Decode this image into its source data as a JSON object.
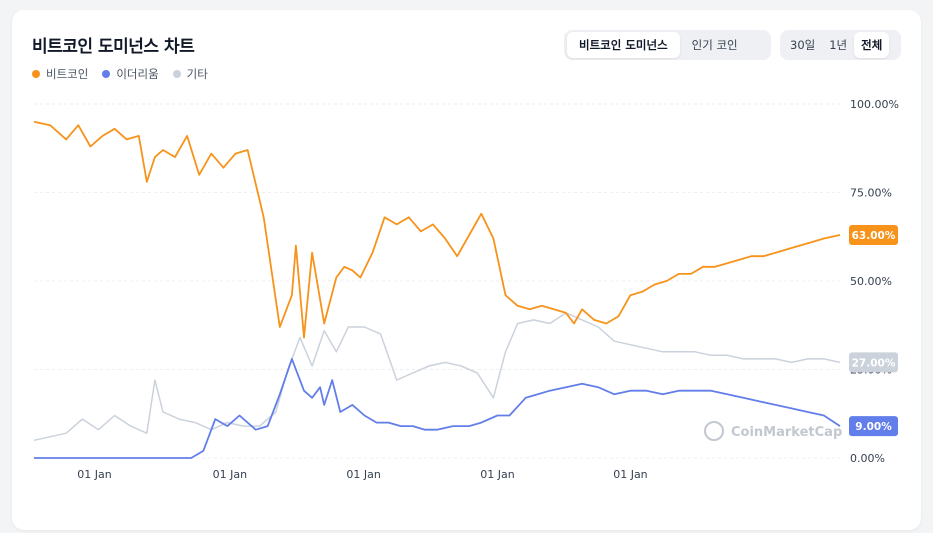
{
  "header": {
    "title": "비트코인 도미넌스 차트",
    "type_tabs": [
      "비트코인 도미넌스",
      "인기 코인"
    ],
    "range_tabs": [
      "30일",
      "1년",
      "전체"
    ]
  },
  "chart_data": {
    "type": "line",
    "legend": [
      "비트코인",
      "이더리움",
      "기타"
    ],
    "colors": {
      "btc": "#f7931a",
      "eth": "#627eea",
      "other": "#cbd2dc"
    },
    "y_ticks": [
      "100.00%",
      "75.00%",
      "50.00%",
      "25.00%",
      "0.00%"
    ],
    "x_tick_labels": [
      "01 Jan",
      "01 Jan",
      "01 Jan",
      "01 Jan",
      "01 Jan"
    ],
    "ylim": [
      0,
      100
    ],
    "last_values": {
      "btc": "63.00%",
      "eth": "9.00%",
      "other": "27.00%"
    },
    "watermark": "CoinMarketCap",
    "series": [
      {
        "name": "비트코인",
        "key": "btc",
        "x": [
          0,
          0.02,
          0.04,
          0.055,
          0.07,
          0.085,
          0.1,
          0.115,
          0.13,
          0.14,
          0.15,
          0.16,
          0.175,
          0.19,
          0.205,
          0.22,
          0.235,
          0.25,
          0.265,
          0.285,
          0.305,
          0.32,
          0.325,
          0.335,
          0.345,
          0.36,
          0.375,
          0.385,
          0.395,
          0.405,
          0.42,
          0.435,
          0.45,
          0.465,
          0.48,
          0.495,
          0.51,
          0.525,
          0.54,
          0.555,
          0.57,
          0.585,
          0.6,
          0.615,
          0.63,
          0.645,
          0.66,
          0.67,
          0.68,
          0.695,
          0.71,
          0.725,
          0.74,
          0.755,
          0.77,
          0.785,
          0.8,
          0.815,
          0.83,
          0.845,
          0.86,
          0.875,
          0.89,
          0.905,
          0.92,
          0.935,
          0.95,
          0.965,
          0.98,
          1.0
        ],
        "y": [
          95,
          94,
          90,
          94,
          88,
          91,
          93,
          90,
          91,
          78,
          85,
          87,
          85,
          91,
          80,
          86,
          82,
          86,
          87,
          68,
          37,
          46,
          60,
          34,
          58,
          38,
          51,
          54,
          53,
          51,
          58,
          68,
          66,
          68,
          64,
          66,
          62,
          57,
          63,
          69,
          62,
          46,
          43,
          42,
          43,
          42,
          41,
          38,
          42,
          39,
          38,
          40,
          46,
          47,
          49,
          50,
          52,
          52,
          54,
          54,
          55,
          56,
          57,
          57,
          58,
          59,
          60,
          61,
          62,
          63
        ]
      },
      {
        "name": "이더리움",
        "key": "eth",
        "x": [
          0,
          0.05,
          0.1,
          0.15,
          0.195,
          0.21,
          0.225,
          0.24,
          0.255,
          0.275,
          0.29,
          0.305,
          0.32,
          0.335,
          0.345,
          0.355,
          0.36,
          0.37,
          0.38,
          0.395,
          0.41,
          0.425,
          0.44,
          0.455,
          0.47,
          0.485,
          0.5,
          0.52,
          0.54,
          0.555,
          0.575,
          0.59,
          0.61,
          0.625,
          0.64,
          0.66,
          0.68,
          0.7,
          0.72,
          0.74,
          0.76,
          0.78,
          0.8,
          0.82,
          0.84,
          0.86,
          0.88,
          0.9,
          0.92,
          0.94,
          0.96,
          0.98,
          1.0
        ],
        "y": [
          0,
          0,
          0,
          0,
          0,
          2,
          11,
          9,
          12,
          8,
          9,
          18,
          28,
          19,
          17,
          20,
          15,
          22,
          13,
          15,
          12,
          10,
          10,
          9,
          9,
          8,
          8,
          9,
          9,
          10,
          12,
          12,
          17,
          18,
          19,
          20,
          21,
          20,
          18,
          19,
          19,
          18,
          19,
          19,
          19,
          18,
          17,
          16,
          15,
          14,
          13,
          12,
          9
        ]
      },
      {
        "name": "기타",
        "key": "other",
        "x": [
          0,
          0.04,
          0.06,
          0.08,
          0.1,
          0.12,
          0.14,
          0.15,
          0.16,
          0.18,
          0.2,
          0.22,
          0.24,
          0.26,
          0.28,
          0.3,
          0.315,
          0.33,
          0.345,
          0.36,
          0.375,
          0.39,
          0.41,
          0.43,
          0.45,
          0.47,
          0.49,
          0.51,
          0.53,
          0.55,
          0.57,
          0.585,
          0.6,
          0.62,
          0.64,
          0.66,
          0.68,
          0.7,
          0.72,
          0.74,
          0.76,
          0.78,
          0.8,
          0.82,
          0.84,
          0.86,
          0.88,
          0.9,
          0.92,
          0.94,
          0.96,
          0.98,
          1.0
        ],
        "y": [
          5,
          7,
          11,
          8,
          12,
          9,
          7,
          22,
          13,
          11,
          10,
          8,
          10,
          9,
          9,
          13,
          25,
          34,
          26,
          36,
          30,
          37,
          37,
          35,
          22,
          24,
          26,
          27,
          26,
          24,
          17,
          30,
          38,
          39,
          38,
          41,
          39,
          37,
          33,
          32,
          31,
          30,
          30,
          30,
          29,
          29,
          28,
          28,
          28,
          27,
          28,
          28,
          27
        ]
      }
    ]
  }
}
